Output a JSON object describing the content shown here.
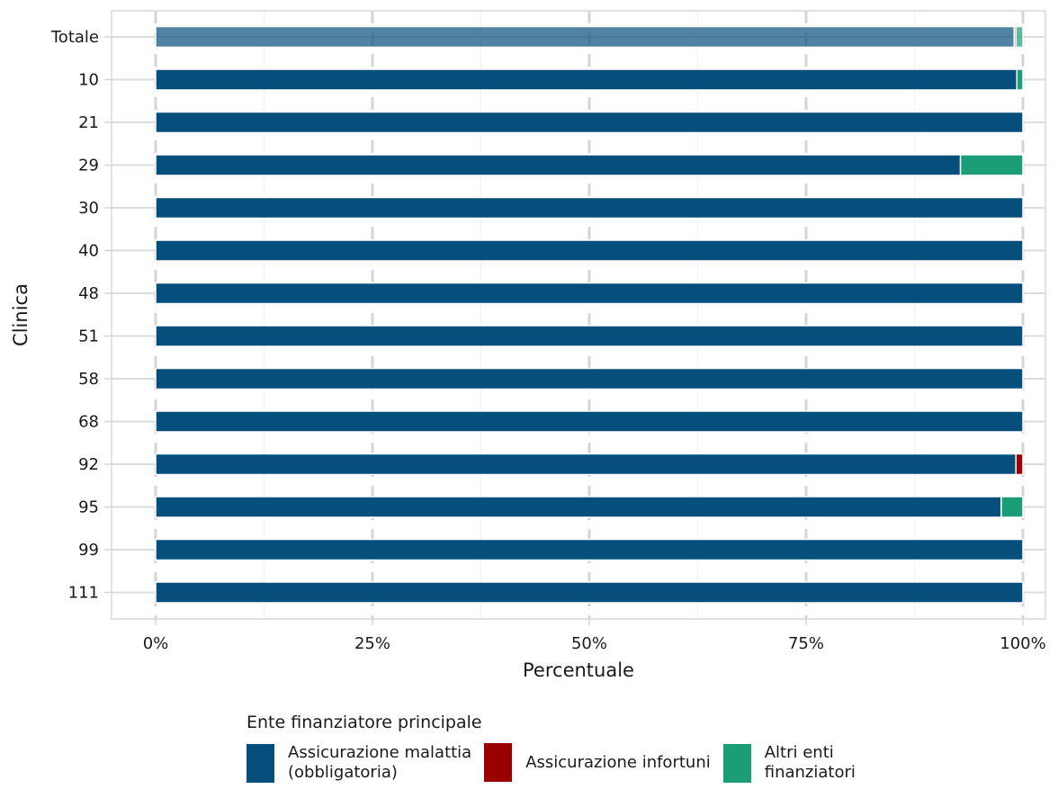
{
  "chart_data": {
    "type": "bar",
    "orientation": "horizontal",
    "stacked": true,
    "xlabel": "Percentuale",
    "ylabel": "Clinica",
    "xlim": [
      0,
      100
    ],
    "x_ticks": [
      "0%",
      "25%",
      "50%",
      "75%",
      "100%"
    ],
    "x_tick_values": [
      0,
      25,
      50,
      75,
      100
    ],
    "categories": [
      "Totale",
      "10",
      "21",
      "29",
      "30",
      "40",
      "48",
      "51",
      "58",
      "68",
      "92",
      "95",
      "99",
      "111"
    ],
    "highlighted_category": "Totale",
    "series": [
      {
        "name": "Assicurazione malattia\n(obbligatoria)",
        "color": "#064f7d",
        "values": [
          99.0,
          99.3,
          100,
          92.8,
          100,
          100,
          100,
          100,
          100,
          100,
          99.2,
          97.5,
          100,
          100
        ]
      },
      {
        "name": "Assicurazione infortuni",
        "color": "#9b0000",
        "values": [
          0.2,
          0,
          0,
          0,
          0,
          0,
          0,
          0,
          0,
          0,
          0.8,
          0,
          0,
          0
        ]
      },
      {
        "name": "Altri enti\nfinanziatori",
        "color": "#1b9e77",
        "values": [
          0.8,
          0.7,
          0,
          7.2,
          0,
          0,
          0,
          0,
          0,
          0,
          0,
          2.5,
          0,
          0
        ]
      }
    ],
    "grid": true,
    "legend_position": "bottom"
  },
  "legend": {
    "title": "Ente finanziatore principale"
  }
}
